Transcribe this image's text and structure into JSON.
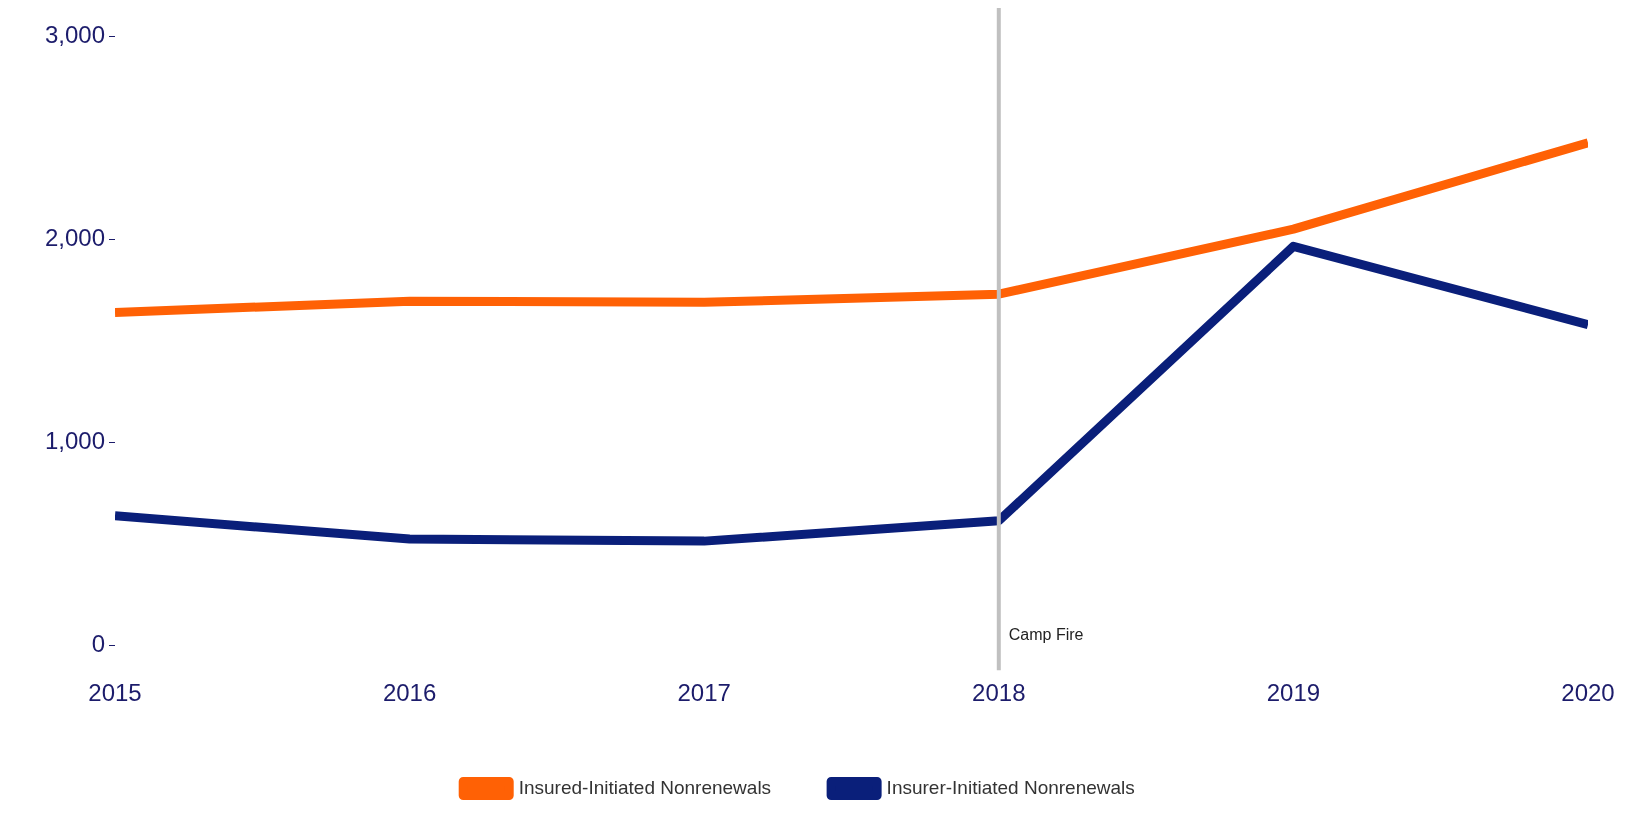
{
  "chart_data": {
    "type": "line",
    "x": [
      2015,
      2016,
      2017,
      2018,
      2019,
      2020
    ],
    "series": [
      {
        "name": "Insured-Initiated Nonrenewals",
        "color": "#ff6105",
        "values": [
          1640,
          1695,
          1690,
          1730,
          2050,
          2475
        ]
      },
      {
        "name": "Insurer-Initiated Nonrenewals",
        "color": "#0a1f7a",
        "values": [
          640,
          525,
          515,
          615,
          1965,
          1580
        ]
      }
    ],
    "xlim": [
      2015,
      2020
    ],
    "xticks": [
      2015,
      2016,
      2017,
      2018,
      2019,
      2020
    ],
    "ylim": [
      -120,
      3000
    ],
    "yticks": [
      {
        "value": 0,
        "label": "0"
      },
      {
        "value": 1000,
        "label": "1,000"
      },
      {
        "value": 2000,
        "label": "2,000"
      },
      {
        "value": 3000,
        "label": "3,000"
      }
    ],
    "ref_lines": [
      {
        "axis": "x",
        "value": 2018,
        "label": "Camp Fire",
        "color": "#c0c0c0"
      }
    ],
    "grid": false,
    "legend": "bottom",
    "marker": "none",
    "line_style": "solid"
  }
}
